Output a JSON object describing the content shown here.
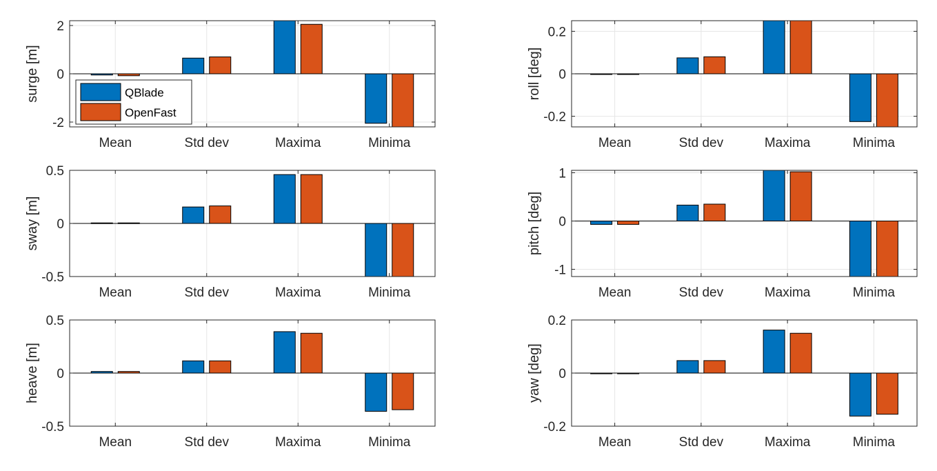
{
  "legend": {
    "entries": [
      "QBlade",
      "OpenFast"
    ]
  },
  "colors": {
    "qblade": "#0072BD",
    "openfast": "#D95319",
    "grid": "#e5e5e5",
    "axes": "#262626",
    "bar_edge": "#000000"
  },
  "chart_data": [
    {
      "type": "bar",
      "ylabel": "surge [m]",
      "categories": [
        "Mean",
        "Std dev",
        "Maxima",
        "Minima"
      ],
      "ylim": [
        -2.2,
        2.2
      ],
      "yticks": [
        -2,
        0,
        2
      ],
      "ytick_labels": [
        "-2",
        "0",
        "2"
      ],
      "grid": true,
      "legend_position": "bottom-left",
      "series": [
        {
          "name": "QBlade",
          "values": [
            -0.05,
            0.65,
            2.3,
            -2.05
          ]
        },
        {
          "name": "OpenFast",
          "values": [
            -0.08,
            0.7,
            2.05,
            -2.3
          ]
        }
      ]
    },
    {
      "type": "bar",
      "ylabel": "roll [deg]",
      "categories": [
        "Mean",
        "Std dev",
        "Maxima",
        "Minima"
      ],
      "ylim": [
        -0.25,
        0.25
      ],
      "yticks": [
        -0.2,
        0,
        0.2
      ],
      "ytick_labels": [
        "-0.2",
        "0",
        "0.2"
      ],
      "grid": true,
      "series": [
        {
          "name": "QBlade",
          "values": [
            0.0,
            0.075,
            0.25,
            -0.225
          ]
        },
        {
          "name": "OpenFast",
          "values": [
            0.0,
            0.08,
            0.26,
            -0.26
          ]
        }
      ]
    },
    {
      "type": "bar",
      "ylabel": "sway [m]",
      "categories": [
        "Mean",
        "Std dev",
        "Maxima",
        "Minima"
      ],
      "ylim": [
        -0.5,
        0.5
      ],
      "yticks": [
        -0.5,
        0,
        0.5
      ],
      "ytick_labels": [
        "-0.5",
        "0",
        "0.5"
      ],
      "grid": true,
      "series": [
        {
          "name": "QBlade",
          "values": [
            0.005,
            0.155,
            0.46,
            -0.5
          ]
        },
        {
          "name": "OpenFast",
          "values": [
            0.005,
            0.165,
            0.46,
            -0.5
          ]
        }
      ]
    },
    {
      "type": "bar",
      "ylabel": "pitch [deg]",
      "categories": [
        "Mean",
        "Std dev",
        "Maxima",
        "Minima"
      ],
      "ylim": [
        -1.15,
        1.05
      ],
      "yticks": [
        -1,
        0,
        1
      ],
      "ytick_labels": [
        "-1",
        "0",
        "1"
      ],
      "grid": true,
      "series": [
        {
          "name": "QBlade",
          "values": [
            -0.07,
            0.33,
            1.05,
            -1.15
          ]
        },
        {
          "name": "OpenFast",
          "values": [
            -0.07,
            0.35,
            1.02,
            -1.15
          ]
        }
      ]
    },
    {
      "type": "bar",
      "ylabel": "heave [m]",
      "categories": [
        "Mean",
        "Std dev",
        "Maxima",
        "Minima"
      ],
      "ylim": [
        -0.5,
        0.5
      ],
      "yticks": [
        -0.5,
        0,
        0.5
      ],
      "ytick_labels": [
        "-0.5",
        "0",
        "0.5"
      ],
      "grid": true,
      "series": [
        {
          "name": "QBlade",
          "values": [
            0.015,
            0.115,
            0.39,
            -0.36
          ]
        },
        {
          "name": "OpenFast",
          "values": [
            0.015,
            0.115,
            0.375,
            -0.345
          ]
        }
      ]
    },
    {
      "type": "bar",
      "ylabel": "yaw [deg]",
      "categories": [
        "Mean",
        "Std dev",
        "Maxima",
        "Minima"
      ],
      "ylim": [
        -0.2,
        0.2
      ],
      "yticks": [
        -0.2,
        0,
        0.2
      ],
      "ytick_labels": [
        "-0.2",
        "0",
        "0.2"
      ],
      "grid": true,
      "series": [
        {
          "name": "QBlade",
          "values": [
            0.0,
            0.047,
            0.162,
            -0.162
          ]
        },
        {
          "name": "OpenFast",
          "values": [
            0.0,
            0.047,
            0.15,
            -0.155
          ]
        }
      ]
    }
  ]
}
